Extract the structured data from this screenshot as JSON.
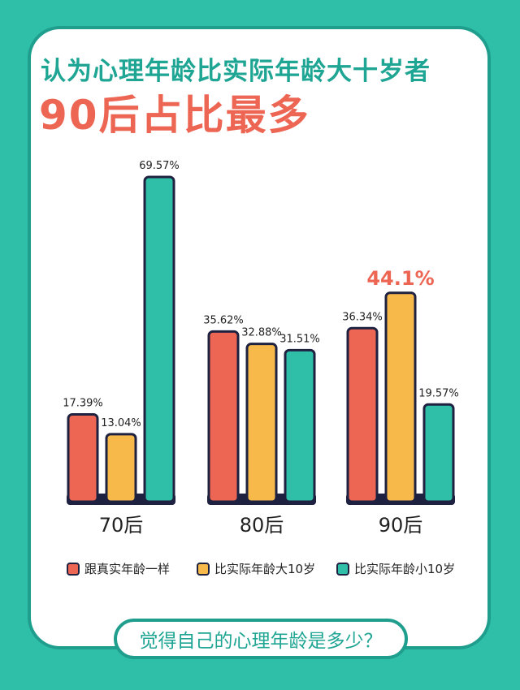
{
  "title_line1": "认为心理年龄比实际年龄大十岁者",
  "title_line2": "90后占比最多",
  "bottom_question": "觉得自己的心理年龄是多少？",
  "colors": {
    "background": "#2fbfa8",
    "title_green": "#1fa593",
    "highlight_red": "#ed6553",
    "series_same": "#ed6553",
    "series_older": "#f7b94a",
    "series_younger": "#2fbfa8",
    "outline": "#1e2240"
  },
  "chart_data": {
    "type": "bar",
    "categories": [
      "70后",
      "80后",
      "90后"
    ],
    "series": [
      {
        "name": "跟真实年龄一样",
        "values": [
          17.39,
          35.62,
          36.34
        ],
        "labels": [
          "17.39%",
          "35.62%",
          "36.34%"
        ],
        "color": "#ed6553"
      },
      {
        "name": "比实际年龄大10岁",
        "values": [
          13.04,
          32.88,
          44.1
        ],
        "labels": [
          "13.04%",
          "32.88%",
          "44.1%"
        ],
        "color": "#f7b94a"
      },
      {
        "name": "比实际年龄小10岁",
        "values": [
          69.57,
          31.51,
          19.57
        ],
        "labels": [
          "69.57%",
          "31.51%",
          "19.57%"
        ],
        "color": "#2fbfa8"
      }
    ],
    "highlight": {
      "series": 1,
      "category": 2
    },
    "legend": "bottom",
    "grid": false
  }
}
